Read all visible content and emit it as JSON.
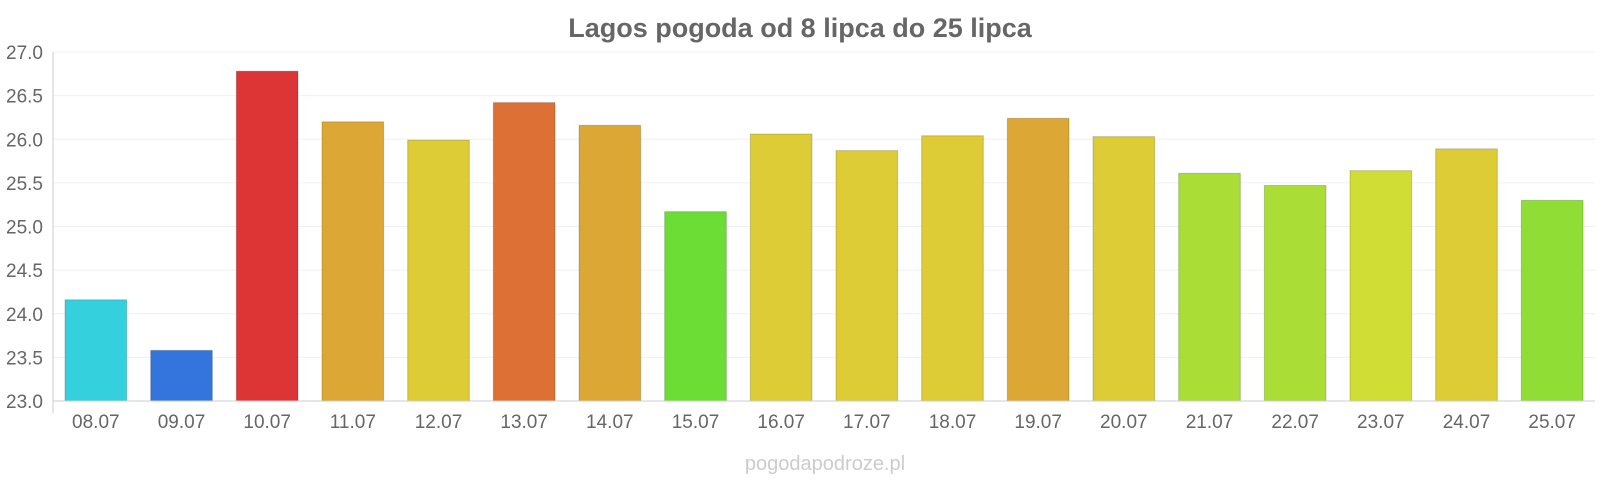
{
  "chart_data": {
    "type": "bar",
    "title": "Lagos pogoda od 8 lipca do 25 lipca",
    "categories": [
      "08.07",
      "09.07",
      "10.07",
      "11.07",
      "12.07",
      "13.07",
      "14.07",
      "15.07",
      "16.07",
      "17.07",
      "18.07",
      "19.07",
      "20.07",
      "21.07",
      "22.07",
      "23.07",
      "24.07",
      "25.07"
    ],
    "values": [
      24.16,
      23.58,
      26.78,
      26.2,
      25.99,
      26.42,
      26.16,
      25.17,
      26.06,
      25.87,
      26.04,
      26.24,
      26.03,
      25.61,
      25.47,
      25.64,
      25.89,
      25.3
    ],
    "colors": [
      "#35d0dd",
      "#3375dd",
      "#dd3535",
      "#dda735",
      "#ddcc35",
      "#dd7035",
      "#dda735",
      "#6bdd35",
      "#ddcc35",
      "#ddcc35",
      "#ddcc35",
      "#dda735",
      "#ddcc35",
      "#aadd35",
      "#aadd35",
      "#cfdd35",
      "#ddcc35",
      "#8fdd35"
    ],
    "ylim": [
      23.0,
      27.0
    ],
    "yticks": [
      "23.0",
      "23.5",
      "24.0",
      "24.5",
      "25.0",
      "25.5",
      "26.0",
      "26.5",
      "27.0"
    ],
    "xlabel": "",
    "ylabel": "",
    "grid": true,
    "legend": "none"
  },
  "footer": {
    "source": "pogodapodroze.pl"
  }
}
